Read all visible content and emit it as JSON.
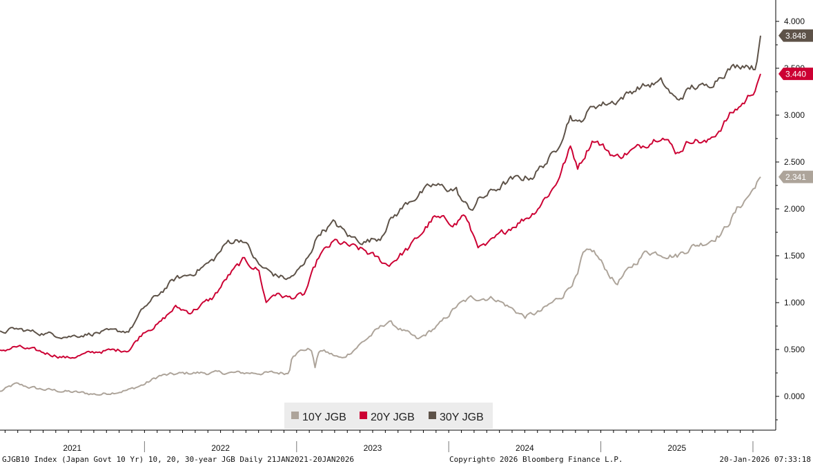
{
  "chart_data": {
    "type": "line",
    "title": "",
    "xlabel": "",
    "ylabel": "",
    "x_start": 2021.05,
    "x_end": 2026.05,
    "ylim": [
      -0.25,
      4.2
    ],
    "y_ticks": [
      "0.000",
      "0.500",
      "1.000",
      "1.500",
      "2.000",
      "2.500",
      "3.000",
      "3.500",
      "4.000"
    ],
    "year_labels": [
      "2021",
      "2022",
      "2023",
      "2024",
      "2025"
    ],
    "legend": {
      "position": "bottom-center"
    },
    "series": [
      {
        "name": "10Y JGB",
        "color": "#ada49a",
        "last_value_label": "2.341",
        "x": [
          2021.05,
          2021.15,
          2021.3,
          2021.5,
          2021.7,
          2021.9,
          2022.0,
          2022.1,
          2022.3,
          2022.5,
          2022.7,
          2022.95,
          2022.97,
          2023.05,
          2023.1,
          2023.12,
          2023.15,
          2023.3,
          2023.45,
          2023.6,
          2023.8,
          2023.95,
          2024.05,
          2024.15,
          2024.3,
          2024.5,
          2024.6,
          2024.75,
          2024.85,
          2024.88,
          2024.95,
          2025.1,
          2025.3,
          2025.5,
          2025.6,
          2025.7,
          2025.8,
          2025.9,
          2026.0,
          2026.03,
          2026.05
        ],
        "values": [
          0.05,
          0.13,
          0.08,
          0.05,
          0.02,
          0.07,
          0.13,
          0.22,
          0.25,
          0.25,
          0.25,
          0.25,
          0.45,
          0.5,
          0.5,
          0.3,
          0.5,
          0.4,
          0.6,
          0.8,
          0.6,
          0.78,
          0.96,
          1.05,
          1.05,
          0.85,
          0.9,
          1.08,
          1.3,
          1.5,
          1.55,
          1.2,
          1.55,
          1.5,
          1.6,
          1.65,
          1.75,
          2.0,
          2.2,
          2.3,
          2.341
        ]
      },
      {
        "name": "20Y JGB",
        "color": "#cc0033",
        "last_value_label": "3.440",
        "x": [
          2021.05,
          2021.15,
          2021.3,
          2021.5,
          2021.7,
          2021.9,
          2022.0,
          2022.1,
          2022.2,
          2022.3,
          2022.45,
          2022.55,
          2022.65,
          2022.75,
          2022.8,
          2022.85,
          2022.95,
          2023.05,
          2023.15,
          2023.25,
          2023.35,
          2023.45,
          2023.55,
          2023.6,
          2023.75,
          2023.9,
          2024.05,
          2024.1,
          2024.15,
          2024.2,
          2024.25,
          2024.4,
          2024.55,
          2024.7,
          2024.75,
          2024.8,
          2024.85,
          2024.95,
          2025.1,
          2025.25,
          2025.4,
          2025.5,
          2025.6,
          2025.7,
          2025.78,
          2025.85,
          2025.95,
          2026.02,
          2026.05
        ],
        "values": [
          0.48,
          0.53,
          0.48,
          0.41,
          0.48,
          0.5,
          0.7,
          0.78,
          0.95,
          0.9,
          1.05,
          1.28,
          1.45,
          1.35,
          1.0,
          1.1,
          1.05,
          1.08,
          1.5,
          1.65,
          1.6,
          1.55,
          1.45,
          1.4,
          1.6,
          1.9,
          1.85,
          1.95,
          1.75,
          1.6,
          1.6,
          1.8,
          1.95,
          2.25,
          2.45,
          2.65,
          2.45,
          2.75,
          2.55,
          2.65,
          2.8,
          2.6,
          2.75,
          2.7,
          2.85,
          3.0,
          3.15,
          3.3,
          3.44
        ]
      },
      {
        "name": "30Y JGB",
        "color": "#5d5248",
        "last_value_label": "3.848",
        "x": [
          2021.05,
          2021.15,
          2021.3,
          2021.5,
          2021.7,
          2021.9,
          2022.0,
          2022.1,
          2022.2,
          2022.3,
          2022.45,
          2022.55,
          2022.65,
          2022.75,
          2022.8,
          2022.85,
          2022.95,
          2023.05,
          2023.15,
          2023.25,
          2023.35,
          2023.45,
          2023.55,
          2023.6,
          2023.75,
          2023.9,
          2024.05,
          2024.1,
          2024.15,
          2024.2,
          2024.25,
          2024.4,
          2024.55,
          2024.7,
          2024.75,
          2024.8,
          2024.85,
          2024.95,
          2025.1,
          2025.25,
          2025.4,
          2025.5,
          2025.6,
          2025.7,
          2025.78,
          2025.85,
          2025.95,
          2026.02,
          2026.05
        ],
        "values": [
          0.68,
          0.72,
          0.68,
          0.64,
          0.68,
          0.7,
          0.95,
          1.1,
          1.25,
          1.3,
          1.45,
          1.65,
          1.68,
          1.4,
          1.35,
          1.3,
          1.25,
          1.4,
          1.75,
          1.85,
          1.7,
          1.65,
          1.7,
          1.85,
          2.1,
          2.25,
          2.2,
          2.05,
          2.0,
          2.1,
          2.15,
          2.3,
          2.35,
          2.6,
          2.8,
          3.0,
          2.9,
          3.1,
          3.15,
          3.3,
          3.35,
          3.15,
          3.3,
          3.3,
          3.42,
          3.5,
          3.55,
          3.5,
          3.848
        ]
      }
    ]
  },
  "footer": {
    "left": "GJGB10 Index (Japan Govt 10 Yr) 10, 20, 30-year JGB Daily 21JAN2021-20JAN2026",
    "center": "Copyright© 2026 Bloomberg Finance L.P.",
    "right": "20-Jan-2026 07:33:18"
  }
}
